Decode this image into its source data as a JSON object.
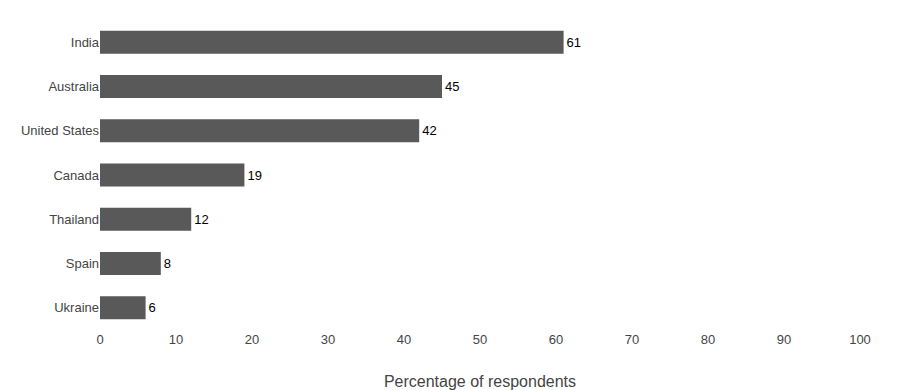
{
  "chart_data": {
    "type": "bar",
    "orientation": "horizontal",
    "categories": [
      "Ukraine",
      "Spain",
      "Thailand",
      "Canada",
      "United States",
      "Australia",
      "India"
    ],
    "values": [
      6,
      8,
      12,
      19,
      42,
      45,
      61
    ],
    "color": "#595959",
    "xlabel": "Percentage of respondents",
    "xlim": [
      0,
      100
    ],
    "xticks": [
      0,
      10,
      20,
      30,
      40,
      50,
      60,
      70,
      80,
      90,
      100
    ],
    "grid": false,
    "data_labels": true
  }
}
